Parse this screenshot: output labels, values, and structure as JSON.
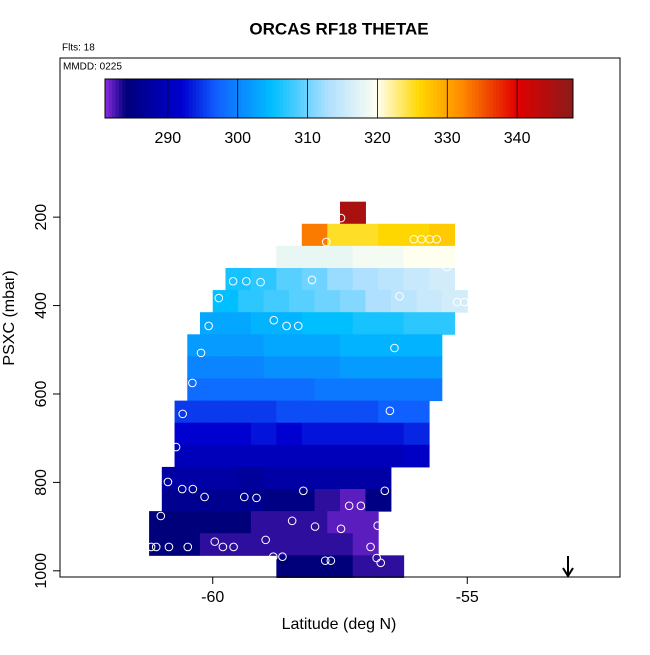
{
  "chart_data": {
    "type": "heatmap",
    "title": "ORCAS RF18 THETAE",
    "annotations": [
      "Flts: 18",
      "MMDD: 0225"
    ],
    "x_label": "Latitude (deg N)",
    "y_label": "PSXC (mbar)",
    "xlim": [
      -63,
      -52
    ],
    "ylim": [
      1014,
      -160
    ],
    "xticks": [
      -60,
      -55
    ],
    "yticks": [
      200,
      400,
      600,
      800,
      1000
    ],
    "dx": 0.5,
    "dy": 50,
    "rows": [
      {
        "y": 190,
        "x0": -57.5,
        "values": [
          345
        ]
      },
      {
        "y": 240,
        "x0": -58.25,
        "values": [
          333,
          325,
          325,
          326,
          326,
          327
        ]
      },
      {
        "y": 290,
        "x0": -58.75,
        "values": [
          318,
          318,
          318,
          319,
          319,
          320,
          320
        ]
      },
      {
        "y": 340,
        "x0": -59.75,
        "values": [
          306,
          307,
          309,
          310,
          312,
          313,
          314,
          315,
          316
        ]
      },
      {
        "y": 390,
        "x0": -60,
        "values": [
          305,
          307,
          308,
          309,
          310,
          311,
          313,
          314,
          315,
          316
        ]
      },
      {
        "y": 440,
        "x0": -60.25,
        "values": [
          303,
          303,
          304,
          304,
          305,
          305,
          306,
          306,
          307,
          307
        ]
      },
      {
        "y": 490,
        "x0": -60.5,
        "values": [
          302,
          302,
          302,
          303,
          303,
          303,
          304,
          304,
          304,
          304
        ]
      },
      {
        "y": 540,
        "x0": -60.5,
        "values": [
          300,
          300,
          300,
          301,
          301,
          301,
          302,
          302,
          302,
          302
        ]
      },
      {
        "y": 590,
        "x0": -60.5,
        "values": [
          298,
          298,
          298,
          298,
          298,
          299,
          299,
          299,
          299,
          299
        ]
      },
      {
        "y": 640,
        "x0": -60.75,
        "values": [
          295,
          295,
          295,
          295,
          296,
          296,
          296,
          296,
          297,
          297
        ]
      },
      {
        "y": 690,
        "x0": -60.75,
        "values": [
          292,
          292,
          292,
          293,
          292,
          293,
          293,
          293,
          293,
          294
        ]
      },
      {
        "y": 740,
        "x0": -60.75,
        "values": [
          290,
          290,
          290,
          290,
          290,
          290,
          290,
          290,
          290,
          291
        ]
      },
      {
        "y": 790,
        "x0": -61,
        "values": [
          288,
          288,
          288,
          287,
          288,
          288,
          288,
          288,
          288
        ]
      },
      {
        "y": 840,
        "x0": -61,
        "values": [
          286,
          286,
          286,
          286,
          285,
          285,
          283,
          282,
          285
        ]
      },
      {
        "y": 890,
        "x0": -61.25,
        "values": [
          284,
          284,
          284,
          284,
          283,
          283,
          283,
          282,
          282
        ]
      },
      {
        "y": 940,
        "x0": -61.25,
        "values": [
          284,
          284,
          283,
          283,
          283,
          283,
          283,
          283,
          282
        ]
      },
      {
        "y": 990,
        "x0": -58.75,
        "values": [
          284,
          284,
          284,
          283,
          283
        ]
      }
    ],
    "points": {
      "x": [
        -57.48,
        -57.77,
        -56.05,
        -55.9,
        -55.74,
        -55.6,
        -55.4,
        -59.6,
        -59.34,
        -59.06,
        -58.05,
        -59.88,
        -56.33,
        -55.2,
        -55.06,
        -54.82,
        -58.8,
        -58.55,
        -58.32,
        -60.08,
        -56.43,
        -60.23,
        -60.4,
        -60.59,
        -56.52,
        -60.72,
        -60.88,
        -60.6,
        -60.39,
        -60.16,
        -59.38,
        -59.14,
        -58.22,
        -56.62,
        -61.02,
        -57.32,
        -57.09,
        -58.44,
        -57.99,
        -57.48,
        -56.76,
        -58.96,
        -59.96,
        -59.8,
        -59.59,
        -61.21,
        -61.11,
        -60.86,
        -60.49,
        -56.9,
        -58.81,
        -58.63,
        -57.79,
        -57.68,
        -56.78,
        -56.7
      ],
      "y": [
        202,
        256,
        250,
        250,
        250,
        250,
        313,
        345,
        345,
        347,
        342,
        383,
        379,
        392,
        392,
        390,
        433,
        446,
        446,
        446,
        496,
        507,
        575,
        645,
        638,
        720,
        799,
        815,
        815,
        833,
        833,
        835,
        819,
        819,
        876,
        853,
        853,
        887,
        900,
        905,
        898,
        930,
        934,
        946,
        946,
        946,
        946,
        946,
        946,
        946,
        968,
        968,
        977,
        977,
        971,
        982
      ]
    },
    "colorbar": {
      "zlim": [
        281,
        348
      ],
      "ticks": [
        290,
        300,
        310,
        320,
        330,
        340
      ],
      "colorscale": [
        [
          281,
          "#8a2be2"
        ],
        [
          284,
          "#00007a"
        ],
        [
          292,
          "#0000d0"
        ],
        [
          297,
          "#1060ff"
        ],
        [
          305,
          "#00bfff"
        ],
        [
          313,
          "#b0e0ff"
        ],
        [
          320,
          "#fffff0"
        ],
        [
          326,
          "#ffd700"
        ],
        [
          332,
          "#ff8c00"
        ],
        [
          340,
          "#e00000"
        ],
        [
          348,
          "#8b1a1a"
        ]
      ]
    }
  }
}
